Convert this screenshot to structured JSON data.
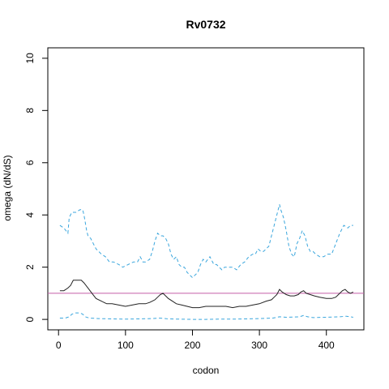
{
  "chart_data": {
    "type": "line",
    "title": "Rv0732",
    "xlabel": "codon",
    "ylabel": "omega (dN/dS)",
    "xlim": [
      -16,
      456
    ],
    "ylim": [
      -0.4,
      10.4
    ],
    "x_ticks": [
      0,
      100,
      200,
      300,
      400
    ],
    "y_ticks": [
      0,
      2,
      4,
      6,
      8,
      10
    ],
    "reference_line": {
      "y": 1,
      "color": "#c45ea8"
    },
    "series": [
      {
        "role": "upper",
        "style": "dashed",
        "color": "#3aa6dd",
        "x": [
          2,
          8,
          14,
          16,
          20,
          26,
          32,
          36,
          38,
          40,
          42,
          44,
          48,
          52,
          56,
          60,
          64,
          70,
          76,
          82,
          90,
          96,
          104,
          112,
          118,
          122,
          126,
          130,
          136,
          140,
          144,
          148,
          152,
          156,
          160,
          164,
          168,
          172,
          176,
          180,
          184,
          188,
          192,
          196,
          200,
          204,
          208,
          212,
          216,
          220,
          226,
          232,
          236,
          240,
          244,
          248,
          254,
          260,
          266,
          272,
          278,
          284,
          290,
          294,
          298,
          302,
          306,
          310,
          314,
          318,
          322,
          326,
          330,
          332,
          336,
          340,
          344,
          348,
          352,
          356,
          360,
          364,
          368,
          372,
          376,
          380,
          384,
          390,
          396,
          402,
          408,
          414,
          420,
          426,
          432,
          436,
          440
        ],
        "y": [
          3.6,
          3.5,
          3.3,
          3.9,
          4.1,
          4.1,
          4.2,
          4.2,
          4.0,
          3.7,
          3.4,
          3.2,
          3.1,
          2.9,
          2.7,
          2.6,
          2.5,
          2.4,
          2.2,
          2.2,
          2.1,
          2.0,
          2.1,
          2.2,
          2.2,
          2.4,
          2.2,
          2.2,
          2.3,
          2.6,
          3.0,
          3.3,
          3.2,
          3.2,
          3.1,
          2.9,
          2.5,
          2.3,
          2.4,
          2.1,
          2.0,
          2.0,
          1.8,
          1.7,
          1.6,
          1.7,
          1.8,
          2.1,
          2.3,
          2.2,
          2.4,
          2.1,
          2.1,
          2.0,
          1.9,
          2.0,
          2.0,
          2.0,
          1.9,
          2.1,
          2.2,
          2.4,
          2.5,
          2.5,
          2.7,
          2.6,
          2.6,
          2.7,
          2.8,
          3.2,
          3.6,
          4.0,
          4.4,
          4.2,
          3.9,
          3.4,
          2.8,
          2.5,
          2.4,
          2.9,
          3.1,
          3.4,
          3.2,
          2.8,
          2.6,
          2.6,
          2.5,
          2.4,
          2.4,
          2.5,
          2.5,
          2.9,
          3.3,
          3.6,
          3.5,
          3.6,
          3.6
        ]
      },
      {
        "role": "estimate",
        "style": "solid",
        "color": "#222222",
        "x": [
          2,
          8,
          14,
          18,
          22,
          28,
          34,
          38,
          44,
          50,
          56,
          64,
          72,
          80,
          90,
          100,
          110,
          120,
          130,
          136,
          140,
          144,
          148,
          152,
          156,
          160,
          164,
          170,
          176,
          184,
          192,
          200,
          210,
          220,
          230,
          240,
          250,
          260,
          270,
          280,
          290,
          300,
          310,
          318,
          322,
          326,
          330,
          334,
          340,
          346,
          352,
          358,
          362,
          366,
          370,
          376,
          382,
          390,
          400,
          408,
          414,
          418,
          424,
          428,
          432,
          436,
          440
        ],
        "y": [
          1.1,
          1.1,
          1.2,
          1.3,
          1.5,
          1.5,
          1.5,
          1.4,
          1.2,
          1.0,
          0.8,
          0.7,
          0.6,
          0.6,
          0.55,
          0.5,
          0.55,
          0.6,
          0.6,
          0.65,
          0.7,
          0.75,
          0.85,
          0.95,
          1.0,
          0.9,
          0.8,
          0.7,
          0.6,
          0.55,
          0.5,
          0.45,
          0.45,
          0.5,
          0.5,
          0.5,
          0.5,
          0.45,
          0.5,
          0.5,
          0.55,
          0.6,
          0.7,
          0.75,
          0.85,
          0.95,
          1.15,
          1.05,
          0.95,
          0.9,
          0.9,
          0.95,
          1.05,
          1.1,
          1.0,
          0.95,
          0.9,
          0.85,
          0.8,
          0.8,
          0.85,
          0.95,
          1.1,
          1.15,
          1.05,
          1.0,
          1.05
        ]
      },
      {
        "role": "lower",
        "style": "dashed",
        "color": "#3aa6dd",
        "x": [
          2,
          10,
          16,
          20,
          26,
          32,
          36,
          40,
          46,
          60,
          80,
          100,
          120,
          140,
          150,
          156,
          164,
          180,
          200,
          220,
          240,
          260,
          280,
          300,
          320,
          330,
          340,
          360,
          366,
          372,
          380,
          400,
          420,
          430,
          436,
          440
        ],
        "y": [
          0.05,
          0.05,
          0.1,
          0.2,
          0.25,
          0.25,
          0.2,
          0.1,
          0.05,
          0.03,
          0.02,
          0.01,
          0.02,
          0.03,
          0.05,
          0.04,
          0.02,
          0.01,
          0.0,
          0.0,
          0.01,
          0.01,
          0.02,
          0.03,
          0.05,
          0.1,
          0.08,
          0.1,
          0.15,
          0.1,
          0.07,
          0.08,
          0.1,
          0.12,
          0.1,
          0.08
        ]
      }
    ]
  }
}
